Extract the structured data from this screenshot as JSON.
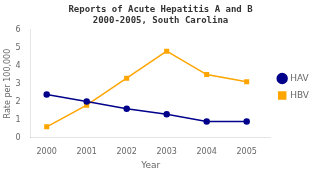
{
  "chart_data": {
    "type": "line",
    "title": "Reports of Acute Hepatitis A and B\n2000-2005, South Carolina",
    "xlabel": "Year",
    "ylabel": "Rate per 100,000",
    "x": [
      2000,
      2001,
      2002,
      2003,
      2004,
      2005
    ],
    "series": [
      {
        "name": "HAV",
        "color": "#00008B",
        "marker": "o",
        "values": [
          2.4,
          2.0,
          1.6,
          1.3,
          0.9,
          0.9
        ]
      },
      {
        "name": "HBV",
        "color": "#FFA500",
        "marker": "s",
        "values": [
          0.6,
          1.8,
          3.3,
          4.8,
          3.5,
          3.1
        ]
      }
    ],
    "xlim": [
      1999.6,
      2005.6
    ],
    "xticks": [
      2000,
      2001,
      2002,
      2003,
      2004,
      2005
    ],
    "ylim": [
      0,
      6
    ],
    "yticks": [
      0,
      1,
      2,
      3,
      4,
      5,
      6
    ],
    "grid": false,
    "legend": "right"
  }
}
